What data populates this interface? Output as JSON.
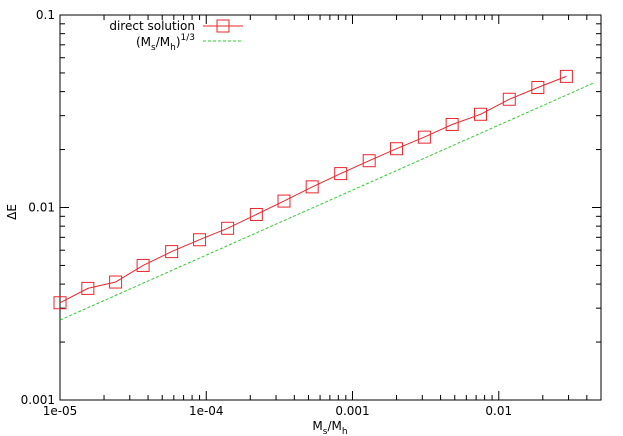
{
  "chart_data": {
    "type": "line",
    "xscale": "log",
    "yscale": "log",
    "xlim": [
      1e-05,
      0.05
    ],
    "ylim": [
      0.001,
      0.1
    ],
    "grid": false,
    "legend_position": "top-left",
    "title": "",
    "xlabel": {
      "base": "M",
      "sub1": "s",
      "mid": "/M",
      "sub2": "h"
    },
    "ylabel": "ΔE",
    "xticks": [
      {
        "value": 1e-05,
        "label": "1e-05"
      },
      {
        "value": 0.0001,
        "label": "1e-04"
      },
      {
        "value": 0.001,
        "label": "0.001"
      },
      {
        "value": 0.01,
        "label": "0.01"
      }
    ],
    "yticks": [
      {
        "value": 0.001,
        "label": "0.001"
      },
      {
        "value": 0.01,
        "label": "0.01"
      },
      {
        "value": 0.1,
        "label": "0.1"
      }
    ],
    "series": [
      {
        "name": "direct solution",
        "color": "#e8272d",
        "style": "line-square",
        "x": [
          1e-05,
          1.55e-05,
          2.4e-05,
          3.7e-05,
          5.8e-05,
          9e-05,
          0.00014,
          0.00022,
          0.00034,
          0.00053,
          0.00083,
          0.0013,
          0.002,
          0.0031,
          0.0048,
          0.0075,
          0.0118,
          0.0185,
          0.029
        ],
        "y": [
          0.0032,
          0.0038,
          0.0041,
          0.005,
          0.0059,
          0.0068,
          0.0078,
          0.0092,
          0.0108,
          0.0128,
          0.015,
          0.0175,
          0.0202,
          0.0232,
          0.027,
          0.0305,
          0.0365,
          0.042,
          0.048
        ]
      },
      {
        "name_parts": {
          "base": "(M",
          "sub1": "s",
          "mid": "/M",
          "sub2": "h",
          "close": ")",
          "sup": "1/3"
        },
        "color": "#2ecc2e",
        "style": "dashed",
        "x": [
          1e-05,
          0.045
        ],
        "y": [
          0.0026,
          0.0445
        ]
      }
    ]
  }
}
